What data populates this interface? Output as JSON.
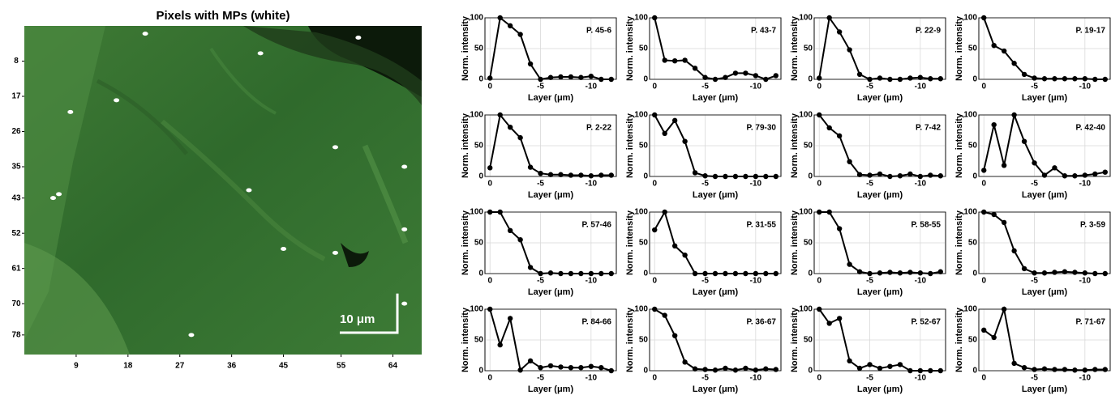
{
  "chart_data": [
    {
      "type": "image",
      "title": "Pixels with MPs (white)",
      "xlim": [
        0,
        69
      ],
      "ylim": [
        -1,
        83
      ],
      "y_reversed": true,
      "xticks": [
        9,
        18,
        27,
        36,
        45,
        55,
        64
      ],
      "yticks": [
        8,
        17,
        26,
        35,
        43,
        52,
        61,
        70,
        78
      ],
      "x": [
        21,
        58,
        41,
        16,
        8,
        54,
        66,
        39,
        6,
        5,
        66,
        45,
        54,
        66,
        29
      ],
      "values": [
        1,
        2,
        6,
        18,
        21,
        30,
        35,
        41,
        42,
        43,
        51,
        56,
        57,
        70,
        78
      ],
      "color": "#ffffff",
      "scale_bar": {
        "label": "10 μm",
        "length": 10
      }
    },
    {
      "type": "line",
      "annotation": "P. 45-6",
      "xlabel": "Layer (μm)",
      "ylabel": "Norm. intensity",
      "xlim": [
        0.5,
        -12.5
      ],
      "ylim": [
        0,
        100
      ],
      "xticks": [
        0,
        -5,
        -10
      ],
      "yticks": [
        0,
        50,
        100
      ],
      "grid": true,
      "x": [
        0,
        -1,
        -2,
        -3,
        -4,
        -5,
        -6,
        -7,
        -8,
        -9,
        -10,
        -11,
        -12
      ],
      "series": [
        {
          "color": "#000000",
          "values": [
            2,
            100,
            87,
            73,
            25,
            0,
            3,
            4,
            4,
            3,
            5,
            0,
            0
          ]
        }
      ]
    },
    {
      "type": "line",
      "annotation": "P. 43-7",
      "xlabel": "Layer (μm)",
      "ylabel": "Norm. intensity",
      "xlim": [
        0.5,
        -12.5
      ],
      "ylim": [
        0,
        100
      ],
      "xticks": [
        0,
        -5,
        -10
      ],
      "yticks": [
        0,
        50,
        100
      ],
      "grid": true,
      "x": [
        0,
        -1,
        -2,
        -3,
        -4,
        -5,
        -6,
        -7,
        -8,
        -9,
        -10,
        -11,
        -12
      ],
      "series": [
        {
          "color": "#000000",
          "values": [
            100,
            31,
            30,
            31,
            18,
            3,
            0,
            3,
            10,
            10,
            6,
            0,
            6
          ]
        }
      ]
    },
    {
      "type": "line",
      "annotation": "P. 22-9",
      "xlabel": "Layer (μm)",
      "ylabel": "Norm. intensity",
      "xlim": [
        0.5,
        -12.5
      ],
      "ylim": [
        0,
        100
      ],
      "xticks": [
        0,
        -5,
        -10
      ],
      "yticks": [
        0,
        50,
        100
      ],
      "grid": true,
      "x": [
        0,
        -1,
        -2,
        -3,
        -4,
        -5,
        -6,
        -7,
        -8,
        -9,
        -10,
        -11,
        -12
      ],
      "series": [
        {
          "color": "#000000",
          "values": [
            2,
            100,
            77,
            48,
            8,
            0,
            2,
            0,
            0,
            2,
            3,
            1,
            1
          ]
        }
      ]
    },
    {
      "type": "line",
      "annotation": "P. 19-17",
      "xlabel": "Layer (μm)",
      "ylabel": "Norm. intensity",
      "xlim": [
        0.5,
        -12.5
      ],
      "ylim": [
        0,
        100
      ],
      "xticks": [
        0,
        -5,
        -10
      ],
      "yticks": [
        0,
        50,
        100
      ],
      "grid": true,
      "x": [
        0,
        -1,
        -2,
        -3,
        -4,
        -5,
        -6,
        -7,
        -8,
        -9,
        -10,
        -11,
        -12
      ],
      "series": [
        {
          "color": "#000000",
          "values": [
            100,
            55,
            46,
            26,
            8,
            2,
            1,
            1,
            1,
            1,
            1,
            0,
            0
          ]
        }
      ]
    },
    {
      "type": "line",
      "annotation": "P. 2-22",
      "xlabel": "Layer (μm)",
      "ylabel": "Norm. intensity",
      "xlim": [
        0.5,
        -12.5
      ],
      "ylim": [
        0,
        100
      ],
      "xticks": [
        0,
        -5,
        -10
      ],
      "yticks": [
        0,
        50,
        100
      ],
      "grid": true,
      "x": [
        0,
        -1,
        -2,
        -3,
        -4,
        -5,
        -6,
        -7,
        -8,
        -9,
        -10,
        -11,
        -12
      ],
      "series": [
        {
          "color": "#000000",
          "values": [
            14,
            100,
            80,
            63,
            15,
            5,
            3,
            3,
            2,
            2,
            1,
            2,
            2
          ]
        }
      ]
    },
    {
      "type": "line",
      "annotation": "P. 79-30",
      "xlabel": "Layer (μm)",
      "ylabel": "Norm. intensity",
      "xlim": [
        0.5,
        -12.5
      ],
      "ylim": [
        0,
        100
      ],
      "xticks": [
        0,
        -5,
        -10
      ],
      "yticks": [
        0,
        50,
        100
      ],
      "grid": true,
      "x": [
        0,
        -1,
        -2,
        -3,
        -4,
        -5,
        -6,
        -7,
        -8,
        -9,
        -10,
        -11,
        -12
      ],
      "series": [
        {
          "color": "#000000",
          "values": [
            100,
            70,
            91,
            57,
            6,
            1,
            0,
            0,
            0,
            0,
            0,
            0,
            0
          ]
        }
      ]
    },
    {
      "type": "line",
      "annotation": "P. 7-42",
      "xlabel": "Layer (μm)",
      "ylabel": "Norm. intensity",
      "xlim": [
        0.5,
        -12.5
      ],
      "ylim": [
        0,
        100
      ],
      "xticks": [
        0,
        -5,
        -10
      ],
      "yticks": [
        0,
        50,
        100
      ],
      "grid": true,
      "x": [
        0,
        -1,
        -2,
        -3,
        -4,
        -5,
        -6,
        -7,
        -8,
        -9,
        -10,
        -11,
        -12
      ],
      "series": [
        {
          "color": "#000000",
          "values": [
            100,
            79,
            66,
            24,
            3,
            2,
            4,
            0,
            1,
            4,
            0,
            2,
            1
          ]
        }
      ]
    },
    {
      "type": "line",
      "annotation": "P. 42-40",
      "xlabel": "Layer (μm)",
      "ylabel": "Norm. intensity",
      "xlim": [
        0.5,
        -12.5
      ],
      "ylim": [
        0,
        100
      ],
      "xticks": [
        0,
        -5,
        -10
      ],
      "yticks": [
        0,
        50,
        100
      ],
      "grid": true,
      "x": [
        0,
        -1,
        -2,
        -3,
        -4,
        -5,
        -6,
        -7,
        -8,
        -9,
        -10,
        -11,
        -12
      ],
      "series": [
        {
          "color": "#000000",
          "values": [
            10,
            84,
            18,
            100,
            57,
            22,
            2,
            14,
            1,
            1,
            2,
            4,
            7
          ]
        }
      ]
    },
    {
      "type": "line",
      "annotation": "P. 57-46",
      "xlabel": "Layer (μm)",
      "ylabel": "Norm. intensity",
      "xlim": [
        0.5,
        -12.5
      ],
      "ylim": [
        0,
        100
      ],
      "xticks": [
        0,
        -5,
        -10
      ],
      "yticks": [
        0,
        50,
        100
      ],
      "grid": true,
      "x": [
        0,
        -1,
        -2,
        -3,
        -4,
        -5,
        -6,
        -7,
        -8,
        -9,
        -10,
        -11,
        -12
      ],
      "series": [
        {
          "color": "#000000",
          "values": [
            100,
            100,
            70,
            55,
            10,
            0,
            1,
            0,
            0,
            0,
            0,
            0,
            0
          ]
        }
      ]
    },
    {
      "type": "line",
      "annotation": "P. 31-55",
      "xlabel": "Layer (μm)",
      "ylabel": "Norm. intensity",
      "xlim": [
        0.5,
        -12.5
      ],
      "ylim": [
        0,
        100
      ],
      "xticks": [
        0,
        -5,
        -10
      ],
      "yticks": [
        0,
        50,
        100
      ],
      "grid": true,
      "x": [
        0,
        -1,
        -2,
        -3,
        -4,
        -5,
        -6,
        -7,
        -8,
        -9,
        -10,
        -11,
        -12
      ],
      "series": [
        {
          "color": "#000000",
          "values": [
            71,
            100,
            45,
            30,
            0,
            0,
            0,
            0,
            0,
            0,
            0,
            0,
            0
          ]
        }
      ]
    },
    {
      "type": "line",
      "annotation": "P. 58-55",
      "xlabel": "Layer (μm)",
      "ylabel": "Norm. intensity",
      "xlim": [
        0.5,
        -12.5
      ],
      "ylim": [
        0,
        100
      ],
      "xticks": [
        0,
        -5,
        -10
      ],
      "yticks": [
        0,
        50,
        100
      ],
      "grid": true,
      "x": [
        0,
        -1,
        -2,
        -3,
        -4,
        -5,
        -6,
        -7,
        -8,
        -9,
        -10,
        -11,
        -12
      ],
      "series": [
        {
          "color": "#000000",
          "values": [
            100,
            100,
            73,
            15,
            3,
            0,
            1,
            2,
            1,
            2,
            1,
            0,
            3
          ]
        }
      ]
    },
    {
      "type": "line",
      "annotation": "P. 3-59",
      "xlabel": "Layer (μm)",
      "ylabel": "Norm. intensity",
      "xlim": [
        0.5,
        -12.5
      ],
      "ylim": [
        0,
        100
      ],
      "xticks": [
        0,
        -5,
        -10
      ],
      "yticks": [
        0,
        50,
        100
      ],
      "grid": true,
      "x": [
        0,
        -1,
        -2,
        -3,
        -4,
        -5,
        -6,
        -7,
        -8,
        -9,
        -10,
        -11,
        -12
      ],
      "series": [
        {
          "color": "#000000",
          "values": [
            100,
            96,
            83,
            37,
            8,
            1,
            1,
            2,
            3,
            2,
            1,
            0,
            0
          ]
        }
      ]
    },
    {
      "type": "line",
      "annotation": "P. 84-66",
      "xlabel": "Layer (μm)",
      "ylabel": "Norm. intensity",
      "xlim": [
        0.5,
        -12.5
      ],
      "ylim": [
        0,
        100
      ],
      "xticks": [
        0,
        -5,
        -10
      ],
      "yticks": [
        0,
        50,
        100
      ],
      "grid": true,
      "x": [
        0,
        -1,
        -2,
        -3,
        -4,
        -5,
        -6,
        -7,
        -8,
        -9,
        -10,
        -11,
        -12
      ],
      "series": [
        {
          "color": "#000000",
          "values": [
            100,
            42,
            85,
            1,
            16,
            5,
            8,
            6,
            5,
            5,
            7,
            5,
            0
          ]
        }
      ]
    },
    {
      "type": "line",
      "annotation": "P. 36-67",
      "xlabel": "Layer (μm)",
      "ylabel": "Norm. intensity",
      "xlim": [
        0.5,
        -12.5
      ],
      "ylim": [
        0,
        100
      ],
      "xticks": [
        0,
        -5,
        -10
      ],
      "yticks": [
        0,
        50,
        100
      ],
      "grid": true,
      "x": [
        0,
        -1,
        -2,
        -3,
        -4,
        -5,
        -6,
        -7,
        -8,
        -9,
        -10,
        -11,
        -12
      ],
      "series": [
        {
          "color": "#000000",
          "values": [
            100,
            90,
            57,
            14,
            3,
            2,
            1,
            4,
            1,
            4,
            1,
            3,
            2
          ]
        }
      ]
    },
    {
      "type": "line",
      "annotation": "P. 52-67",
      "xlabel": "Layer (μm)",
      "ylabel": "Norm. intensity",
      "xlim": [
        0.5,
        -12.5
      ],
      "ylim": [
        0,
        100
      ],
      "xticks": [
        0,
        -5,
        -10
      ],
      "yticks": [
        0,
        50,
        100
      ],
      "grid": true,
      "x": [
        0,
        -1,
        -2,
        -3,
        -4,
        -5,
        -6,
        -7,
        -8,
        -9,
        -10,
        -11,
        -12
      ],
      "series": [
        {
          "color": "#000000",
          "values": [
            100,
            77,
            85,
            16,
            4,
            10,
            4,
            7,
            10,
            0,
            0,
            0,
            0
          ]
        }
      ]
    },
    {
      "type": "line",
      "annotation": "P. 71-67",
      "xlabel": "Layer (μm)",
      "ylabel": "Norm. intensity",
      "xlim": [
        0.5,
        -12.5
      ],
      "ylim": [
        0,
        100
      ],
      "xticks": [
        0,
        -5,
        -10
      ],
      "yticks": [
        0,
        50,
        100
      ],
      "grid": true,
      "x": [
        0,
        -1,
        -2,
        -3,
        -4,
        -5,
        -6,
        -7,
        -8,
        -9,
        -10,
        -11,
        -12
      ],
      "series": [
        {
          "color": "#000000",
          "values": [
            66,
            54,
            100,
            12,
            5,
            2,
            3,
            2,
            2,
            1,
            1,
            2,
            2
          ]
        }
      ]
    }
  ]
}
